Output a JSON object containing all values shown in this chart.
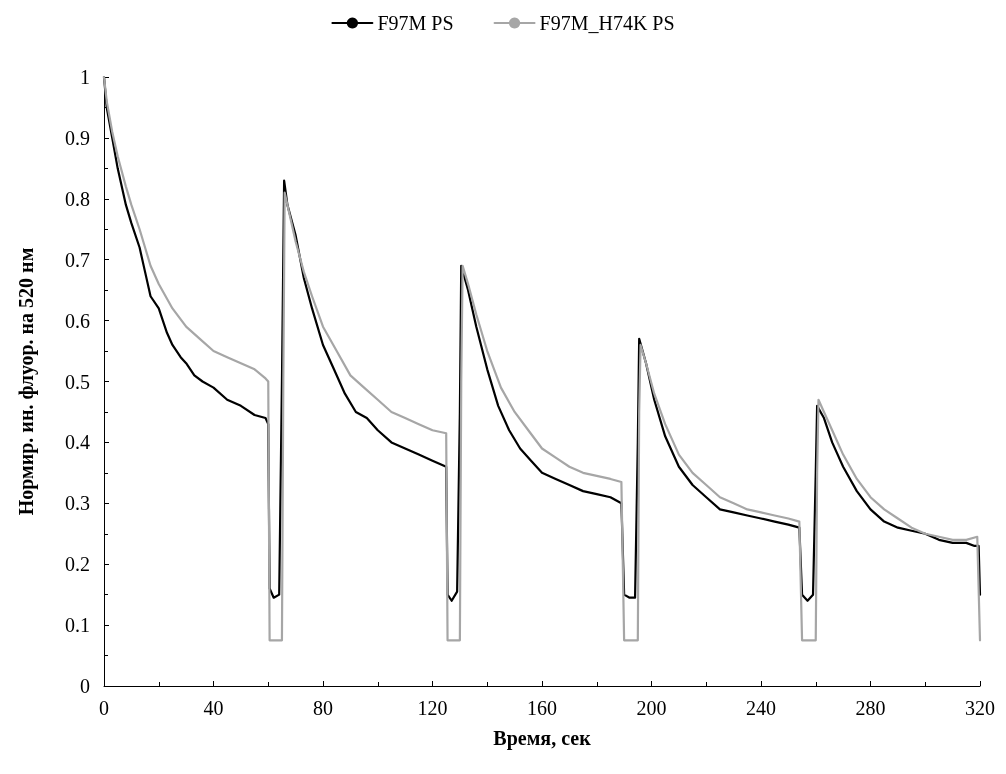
{
  "chart_data": {
    "type": "line",
    "xlabel": "Время, сек",
    "ylabel": "Нормир. ин. флуор. на 520 нм",
    "xlim": [
      0,
      320
    ],
    "xticks": [
      0,
      40,
      80,
      120,
      160,
      200,
      240,
      280,
      320
    ],
    "ylim": [
      0,
      1
    ],
    "yticks": [
      0,
      0.1,
      0.2,
      0.3,
      0.4,
      0.5,
      0.6,
      0.7,
      0.8,
      0.9,
      1
    ],
    "grid": false,
    "legend": "top",
    "marker": "none",
    "line_style": "solid",
    "series": [
      {
        "name": "F97M PS",
        "color": "#000000",
        "x": [
          0,
          1,
          3,
          5,
          8,
          10,
          13,
          15,
          17,
          20,
          23,
          25,
          28,
          30,
          33,
          36,
          40,
          45,
          50,
          55,
          59,
          60,
          60.5,
          62,
          64,
          65,
          65.8,
          67,
          70,
          73,
          76,
          80,
          84,
          88,
          92,
          96,
          100,
          105,
          110,
          115,
          120,
          125,
          125.5,
          127,
          129,
          130,
          130.5,
          133,
          136,
          140,
          144,
          148,
          152,
          156,
          160,
          165,
          170,
          175,
          180,
          185,
          189,
          190,
          192,
          194,
          195,
          195.5,
          198,
          201,
          205,
          210,
          215,
          220,
          225,
          230,
          235,
          240,
          245,
          250,
          254,
          255,
          257,
          259,
          260,
          260.5,
          263,
          266,
          270,
          275,
          280,
          285,
          290,
          295,
          300,
          305,
          310,
          315,
          318,
          319.5,
          320
        ],
        "values": [
          1,
          0.95,
          0.9,
          0.85,
          0.79,
          0.76,
          0.72,
          0.68,
          0.64,
          0.62,
          0.58,
          0.56,
          0.54,
          0.53,
          0.51,
          0.5,
          0.49,
          0.47,
          0.46,
          0.445,
          0.44,
          0.43,
          0.16,
          0.145,
          0.15,
          0.5,
          0.83,
          0.79,
          0.74,
          0.67,
          0.62,
          0.56,
          0.52,
          0.48,
          0.45,
          0.44,
          0.42,
          0.4,
          0.39,
          0.38,
          0.37,
          0.36,
          0.15,
          0.14,
          0.155,
          0.45,
          0.69,
          0.65,
          0.59,
          0.52,
          0.46,
          0.42,
          0.39,
          0.37,
          0.35,
          0.34,
          0.33,
          0.32,
          0.315,
          0.31,
          0.3,
          0.15,
          0.145,
          0.145,
          0.4,
          0.57,
          0.53,
          0.47,
          0.41,
          0.36,
          0.33,
          0.31,
          0.29,
          0.285,
          0.28,
          0.275,
          0.27,
          0.265,
          0.26,
          0.15,
          0.14,
          0.15,
          0.35,
          0.46,
          0.44,
          0.4,
          0.36,
          0.32,
          0.29,
          0.27,
          0.26,
          0.255,
          0.25,
          0.24,
          0.235,
          0.235,
          0.23,
          0.23,
          0.15
        ]
      },
      {
        "name": "F97M_H74K PS",
        "color": "#a6a6a6",
        "x": [
          0,
          1,
          3,
          5,
          8,
          10,
          13,
          15,
          17,
          20,
          25,
          30,
          35,
          40,
          45,
          50,
          55,
          59,
          60,
          60.5,
          65,
          65.5,
          66,
          68,
          70,
          73,
          76,
          80,
          85,
          90,
          95,
          100,
          105,
          110,
          115,
          120,
          125,
          125.5,
          130,
          130.5,
          131,
          133,
          136,
          140,
          145,
          150,
          155,
          160,
          165,
          170,
          175,
          180,
          185,
          189,
          190,
          195,
          195.5,
          196,
          198,
          201,
          205,
          210,
          215,
          220,
          225,
          230,
          235,
          240,
          245,
          250,
          254,
          255,
          260,
          260.5,
          261,
          263,
          266,
          270,
          275,
          280,
          285,
          290,
          295,
          300,
          305,
          310,
          315,
          319,
          320
        ],
        "values": [
          1,
          0.96,
          0.91,
          0.87,
          0.82,
          0.79,
          0.75,
          0.72,
          0.69,
          0.66,
          0.62,
          0.59,
          0.57,
          0.55,
          0.54,
          0.53,
          0.52,
          0.505,
          0.5,
          0.075,
          0.075,
          0.5,
          0.81,
          0.77,
          0.73,
          0.68,
          0.64,
          0.59,
          0.55,
          0.51,
          0.49,
          0.47,
          0.45,
          0.44,
          0.43,
          0.42,
          0.415,
          0.075,
          0.075,
          0.5,
          0.69,
          0.66,
          0.61,
          0.55,
          0.49,
          0.45,
          0.42,
          0.39,
          0.375,
          0.36,
          0.35,
          0.345,
          0.34,
          0.335,
          0.075,
          0.075,
          0.45,
          0.56,
          0.53,
          0.48,
          0.43,
          0.38,
          0.35,
          0.33,
          0.31,
          0.3,
          0.29,
          0.285,
          0.28,
          0.275,
          0.27,
          0.075,
          0.075,
          0.35,
          0.47,
          0.45,
          0.42,
          0.38,
          0.34,
          0.31,
          0.29,
          0.275,
          0.26,
          0.25,
          0.245,
          0.24,
          0.24,
          0.245,
          0.075
        ]
      }
    ]
  }
}
